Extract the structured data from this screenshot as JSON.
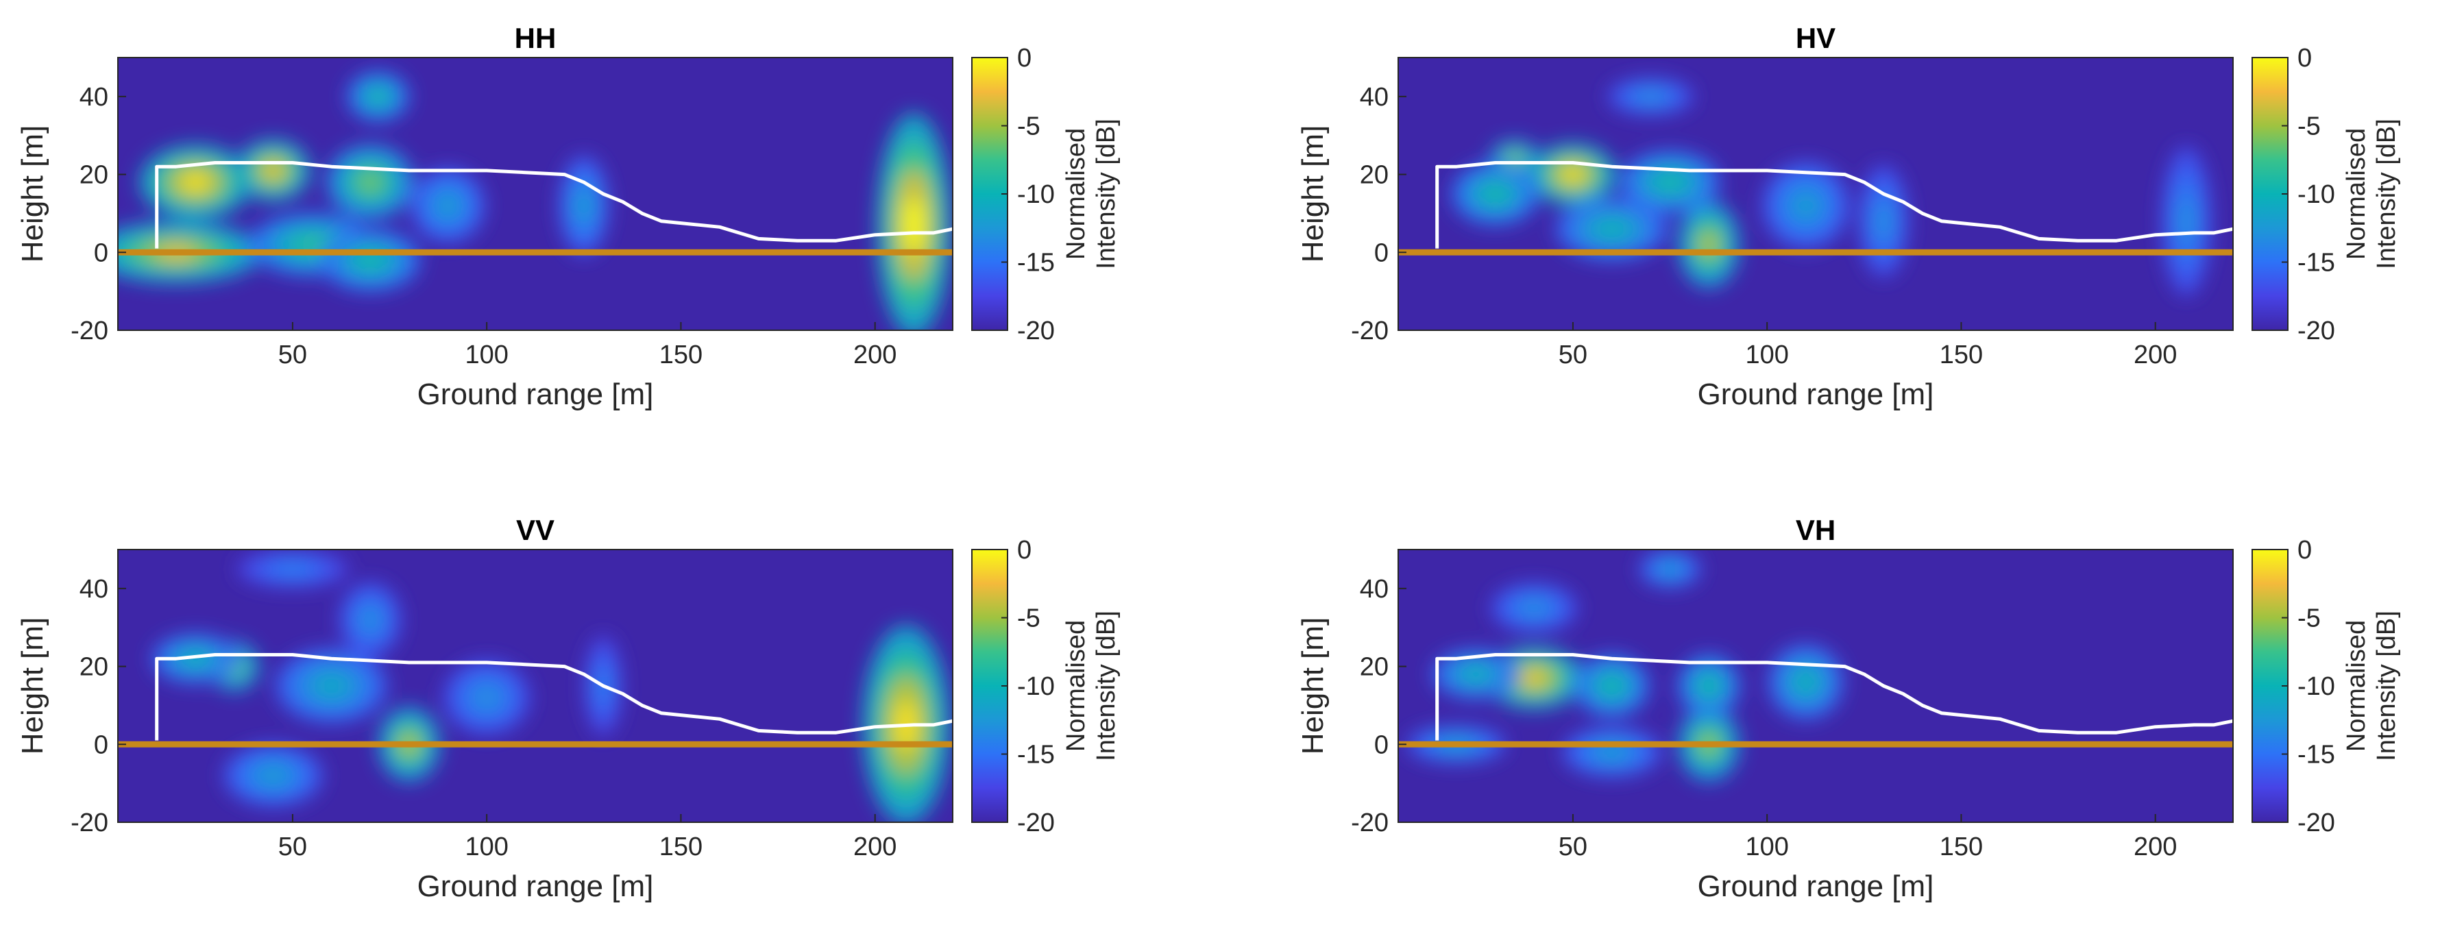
{
  "figure": {
    "colors": {
      "background": "#ffffff",
      "axis": "#262626",
      "surface_line": "#ffffff",
      "ground_line": "#c8891a",
      "colormap": [
        "#3e26a8",
        "#4743e6",
        "#2d72f7",
        "#1d98d6",
        "#09b3b6",
        "#38c28c",
        "#9fc340",
        "#f4ba3b",
        "#f9fb15"
      ]
    }
  },
  "chart_data": [
    {
      "type": "heatmap",
      "title": "HH",
      "xlabel": "Ground range [m]",
      "ylabel": "Height [m]",
      "xlim": [
        5,
        220
      ],
      "ylim": [
        -20,
        50
      ],
      "xticks": [
        "50",
        "100",
        "150",
        "200"
      ],
      "yticks": [
        "40",
        "20",
        "0",
        "-20"
      ],
      "colorbar": {
        "label": "Normalised Intensity [dB]",
        "range": [
          -20,
          0
        ],
        "ticks": [
          "0",
          "-5",
          "-10",
          "-15",
          "-20"
        ]
      },
      "surface_height_profile": [
        [
          15,
          1
        ],
        [
          15,
          22
        ],
        [
          20,
          22
        ],
        [
          30,
          23
        ],
        [
          50,
          23
        ],
        [
          60,
          22
        ],
        [
          70,
          21.5
        ],
        [
          80,
          21
        ],
        [
          90,
          21
        ],
        [
          100,
          21
        ],
        [
          110,
          20.5
        ],
        [
          120,
          20
        ],
        [
          125,
          18
        ],
        [
          130,
          15
        ],
        [
          135,
          13
        ],
        [
          140,
          10
        ],
        [
          145,
          8
        ],
        [
          150,
          7.5
        ],
        [
          160,
          6.5
        ],
        [
          165,
          5
        ],
        [
          170,
          3.5
        ],
        [
          180,
          3
        ],
        [
          190,
          3
        ],
        [
          200,
          4.5
        ],
        [
          210,
          5
        ],
        [
          215,
          5
        ],
        [
          220,
          6
        ]
      ],
      "ground_level": 0,
      "intensity_blobs": [
        {
          "x": 25,
          "y": 18,
          "sx": 9,
          "sy": 6,
          "db": -1
        },
        {
          "x": 45,
          "y": 21,
          "sx": 6,
          "sy": 5,
          "db": -2
        },
        {
          "x": 70,
          "y": 18,
          "sx": 7,
          "sy": 6,
          "db": -6
        },
        {
          "x": 20,
          "y": 0,
          "sx": 14,
          "sy": 5,
          "db": -3
        },
        {
          "x": 55,
          "y": 2,
          "sx": 10,
          "sy": 5,
          "db": -8
        },
        {
          "x": 70,
          "y": -2,
          "sx": 8,
          "sy": 5,
          "db": -9
        },
        {
          "x": 72,
          "y": 40,
          "sx": 5,
          "sy": 4,
          "db": -9
        },
        {
          "x": 90,
          "y": 12,
          "sx": 6,
          "sy": 6,
          "db": -12
        },
        {
          "x": 125,
          "y": 12,
          "sx": 4,
          "sy": 8,
          "db": -12
        },
        {
          "x": 210,
          "y": 7,
          "sx": 6,
          "sy": 18,
          "db": 0
        }
      ]
    },
    {
      "type": "heatmap",
      "title": "HV",
      "xlabel": "Ground range [m]",
      "ylabel": "Height [m]",
      "xlim": [
        5,
        220
      ],
      "ylim": [
        -20,
        50
      ],
      "xticks": [
        "50",
        "100",
        "150",
        "200"
      ],
      "yticks": [
        "40",
        "20",
        "0",
        "-20"
      ],
      "colorbar": {
        "label": "Normalised Intensity [dB]",
        "range": [
          -20,
          0
        ],
        "ticks": [
          "0",
          "-5",
          "-10",
          "-15",
          "-20"
        ]
      },
      "surface_height_profile": [
        [
          15,
          1
        ],
        [
          15,
          22
        ],
        [
          20,
          22
        ],
        [
          30,
          23
        ],
        [
          50,
          23
        ],
        [
          60,
          22
        ],
        [
          70,
          21.5
        ],
        [
          80,
          21
        ],
        [
          90,
          21
        ],
        [
          100,
          21
        ],
        [
          110,
          20.5
        ],
        [
          120,
          20
        ],
        [
          125,
          18
        ],
        [
          130,
          15
        ],
        [
          135,
          13
        ],
        [
          140,
          10
        ],
        [
          145,
          8
        ],
        [
          150,
          7.5
        ],
        [
          160,
          6.5
        ],
        [
          165,
          5
        ],
        [
          170,
          3.5
        ],
        [
          180,
          3
        ],
        [
          190,
          3
        ],
        [
          200,
          4.5
        ],
        [
          210,
          5
        ],
        [
          215,
          5
        ],
        [
          220,
          6
        ]
      ],
      "ground_level": 0,
      "intensity_blobs": [
        {
          "x": 50,
          "y": 20,
          "sx": 7,
          "sy": 5,
          "db": -1
        },
        {
          "x": 35,
          "y": 24,
          "sx": 4,
          "sy": 3,
          "db": -5
        },
        {
          "x": 30,
          "y": 15,
          "sx": 7,
          "sy": 5,
          "db": -9
        },
        {
          "x": 75,
          "y": 18,
          "sx": 8,
          "sy": 5,
          "db": -9
        },
        {
          "x": 85,
          "y": 2,
          "sx": 5,
          "sy": 7,
          "db": -4
        },
        {
          "x": 60,
          "y": 6,
          "sx": 9,
          "sy": 5,
          "db": -10
        },
        {
          "x": 110,
          "y": 12,
          "sx": 7,
          "sy": 7,
          "db": -12
        },
        {
          "x": 130,
          "y": 8,
          "sx": 4,
          "sy": 9,
          "db": -13
        },
        {
          "x": 70,
          "y": 40,
          "sx": 7,
          "sy": 3,
          "db": -13
        },
        {
          "x": 208,
          "y": 8,
          "sx": 4,
          "sy": 12,
          "db": -13
        }
      ]
    },
    {
      "type": "heatmap",
      "title": "VV",
      "xlabel": "Ground range [m]",
      "ylabel": "Height [m]",
      "xlim": [
        5,
        220
      ],
      "ylim": [
        -20,
        50
      ],
      "xticks": [
        "50",
        "100",
        "150",
        "200"
      ],
      "yticks": [
        "40",
        "20",
        "0",
        "-20"
      ],
      "colorbar": {
        "label": "Normalised Intensity [dB]",
        "range": [
          -20,
          0
        ],
        "ticks": [
          "0",
          "-5",
          "-10",
          "-15",
          "-20"
        ]
      },
      "surface_height_profile": [
        [
          15,
          1
        ],
        [
          15,
          22
        ],
        [
          20,
          22
        ],
        [
          30,
          23
        ],
        [
          50,
          23
        ],
        [
          60,
          22
        ],
        [
          70,
          21.5
        ],
        [
          80,
          21
        ],
        [
          90,
          21
        ],
        [
          100,
          21
        ],
        [
          110,
          20.5
        ],
        [
          120,
          20
        ],
        [
          125,
          18
        ],
        [
          130,
          15
        ],
        [
          135,
          13
        ],
        [
          140,
          10
        ],
        [
          145,
          8
        ],
        [
          150,
          7.5
        ],
        [
          160,
          6.5
        ],
        [
          165,
          5
        ],
        [
          170,
          3.5
        ],
        [
          180,
          3
        ],
        [
          190,
          3
        ],
        [
          200,
          4.5
        ],
        [
          210,
          5
        ],
        [
          215,
          5
        ],
        [
          220,
          6
        ]
      ],
      "ground_level": 0,
      "intensity_blobs": [
        {
          "x": 35,
          "y": 20,
          "sx": 4,
          "sy": 4,
          "db": -5
        },
        {
          "x": 25,
          "y": 22,
          "sx": 7,
          "sy": 4,
          "db": -10
        },
        {
          "x": 60,
          "y": 15,
          "sx": 9,
          "sy": 6,
          "db": -11
        },
        {
          "x": 80,
          "y": 0,
          "sx": 5,
          "sy": 6,
          "db": -4
        },
        {
          "x": 45,
          "y": -8,
          "sx": 8,
          "sy": 5,
          "db": -12
        },
        {
          "x": 70,
          "y": 32,
          "sx": 5,
          "sy": 6,
          "db": -13
        },
        {
          "x": 50,
          "y": 45,
          "sx": 9,
          "sy": 3,
          "db": -14
        },
        {
          "x": 100,
          "y": 12,
          "sx": 7,
          "sy": 6,
          "db": -13
        },
        {
          "x": 130,
          "y": 15,
          "sx": 3,
          "sy": 8,
          "db": -14
        },
        {
          "x": 208,
          "y": 5,
          "sx": 7,
          "sy": 16,
          "db": -1
        }
      ]
    },
    {
      "type": "heatmap",
      "title": "VH",
      "xlabel": "Ground range [m]",
      "ylabel": "Height [m]",
      "xlim": [
        5,
        220
      ],
      "ylim": [
        -20,
        50
      ],
      "xticks": [
        "50",
        "100",
        "150",
        "200"
      ],
      "yticks": [
        "40",
        "20",
        "0",
        "-20"
      ],
      "colorbar": {
        "label": "Normalised Intensity [dB]",
        "range": [
          -20,
          0
        ],
        "ticks": [
          "0",
          "-5",
          "-10",
          "-15",
          "-20"
        ]
      },
      "surface_height_profile": [
        [
          15,
          1
        ],
        [
          15,
          22
        ],
        [
          20,
          22
        ],
        [
          30,
          23
        ],
        [
          50,
          23
        ],
        [
          60,
          22
        ],
        [
          70,
          21.5
        ],
        [
          80,
          21
        ],
        [
          90,
          21
        ],
        [
          100,
          21
        ],
        [
          110,
          20.5
        ],
        [
          120,
          20
        ],
        [
          125,
          18
        ],
        [
          130,
          15
        ],
        [
          135,
          13
        ],
        [
          140,
          10
        ],
        [
          145,
          8
        ],
        [
          150,
          7.5
        ],
        [
          160,
          6.5
        ],
        [
          165,
          5
        ],
        [
          170,
          3.5
        ],
        [
          180,
          3
        ],
        [
          190,
          3
        ],
        [
          200,
          4.5
        ],
        [
          210,
          5
        ],
        [
          215,
          5
        ],
        [
          220,
          6
        ]
      ],
      "ground_level": 0,
      "intensity_blobs": [
        {
          "x": 40,
          "y": 17,
          "sx": 8,
          "sy": 5,
          "db": -2
        },
        {
          "x": 25,
          "y": 18,
          "sx": 7,
          "sy": 4,
          "db": -10
        },
        {
          "x": 60,
          "y": 15,
          "sx": 6,
          "sy": 5,
          "db": -9
        },
        {
          "x": 85,
          "y": 0,
          "sx": 5,
          "sy": 6,
          "db": -5
        },
        {
          "x": 85,
          "y": 15,
          "sx": 5,
          "sy": 5,
          "db": -9
        },
        {
          "x": 110,
          "y": 16,
          "sx": 6,
          "sy": 6,
          "db": -10
        },
        {
          "x": 60,
          "y": -2,
          "sx": 8,
          "sy": 4,
          "db": -12
        },
        {
          "x": 40,
          "y": 35,
          "sx": 7,
          "sy": 4,
          "db": -13
        },
        {
          "x": 75,
          "y": 45,
          "sx": 5,
          "sy": 3,
          "db": -12
        },
        {
          "x": 20,
          "y": 0,
          "sx": 8,
          "sy": 3,
          "db": -12
        }
      ]
    }
  ]
}
